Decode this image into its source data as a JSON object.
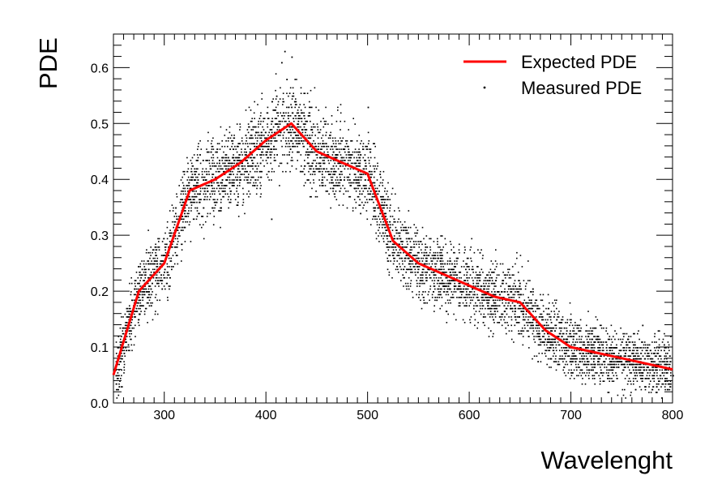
{
  "chart_data": {
    "type": "scatter",
    "title": "",
    "xlabel": "Wavelenght",
    "ylabel": "PDE",
    "xlim": [
      250,
      800
    ],
    "ylim": [
      0,
      0.66
    ],
    "xticks": [
      300,
      400,
      500,
      600,
      700,
      800
    ],
    "yticks": [
      0.0,
      0.1,
      0.2,
      0.3,
      0.4,
      0.5,
      0.6
    ],
    "grid": false,
    "legend_position": "top-right",
    "series": [
      {
        "name": "Expected PDE",
        "kind": "line",
        "color": "#ff0000",
        "x": [
          250,
          260,
          275,
          300,
          325,
          350,
          375,
          400,
          425,
          450,
          475,
          500,
          525,
          550,
          575,
          600,
          625,
          650,
          675,
          700,
          725,
          750,
          775,
          800
        ],
        "y": [
          0.05,
          0.11,
          0.2,
          0.25,
          0.38,
          0.4,
          0.43,
          0.47,
          0.5,
          0.45,
          0.43,
          0.41,
          0.29,
          0.25,
          0.23,
          0.21,
          0.19,
          0.18,
          0.13,
          0.1,
          0.09,
          0.08,
          0.07,
          0.06
        ]
      },
      {
        "name": "Measured PDE",
        "kind": "scatter",
        "color": "#000000",
        "distribution": "dense point cloud around the expected curve, spread about ±0.06",
        "sample_x": [
          252,
          265,
          280,
          300,
          320,
          340,
          360,
          380,
          400,
          410,
          420,
          425,
          430,
          440,
          460,
          480,
          500,
          520,
          540,
          560,
          580,
          600,
          620,
          640,
          660,
          680,
          700,
          720,
          740,
          760,
          780,
          800,
          418,
          415,
          405,
          500,
          610,
          770
        ],
        "sample_y": [
          0.05,
          0.14,
          0.24,
          0.24,
          0.36,
          0.4,
          0.42,
          0.45,
          0.47,
          0.55,
          0.58,
          0.62,
          0.52,
          0.48,
          0.44,
          0.43,
          0.4,
          0.31,
          0.26,
          0.24,
          0.22,
          0.2,
          0.19,
          0.17,
          0.14,
          0.11,
          0.1,
          0.09,
          0.08,
          0.07,
          0.06,
          0.05,
          0.63,
          0.61,
          0.33,
          0.53,
          0.27,
          0.14
        ]
      }
    ]
  }
}
